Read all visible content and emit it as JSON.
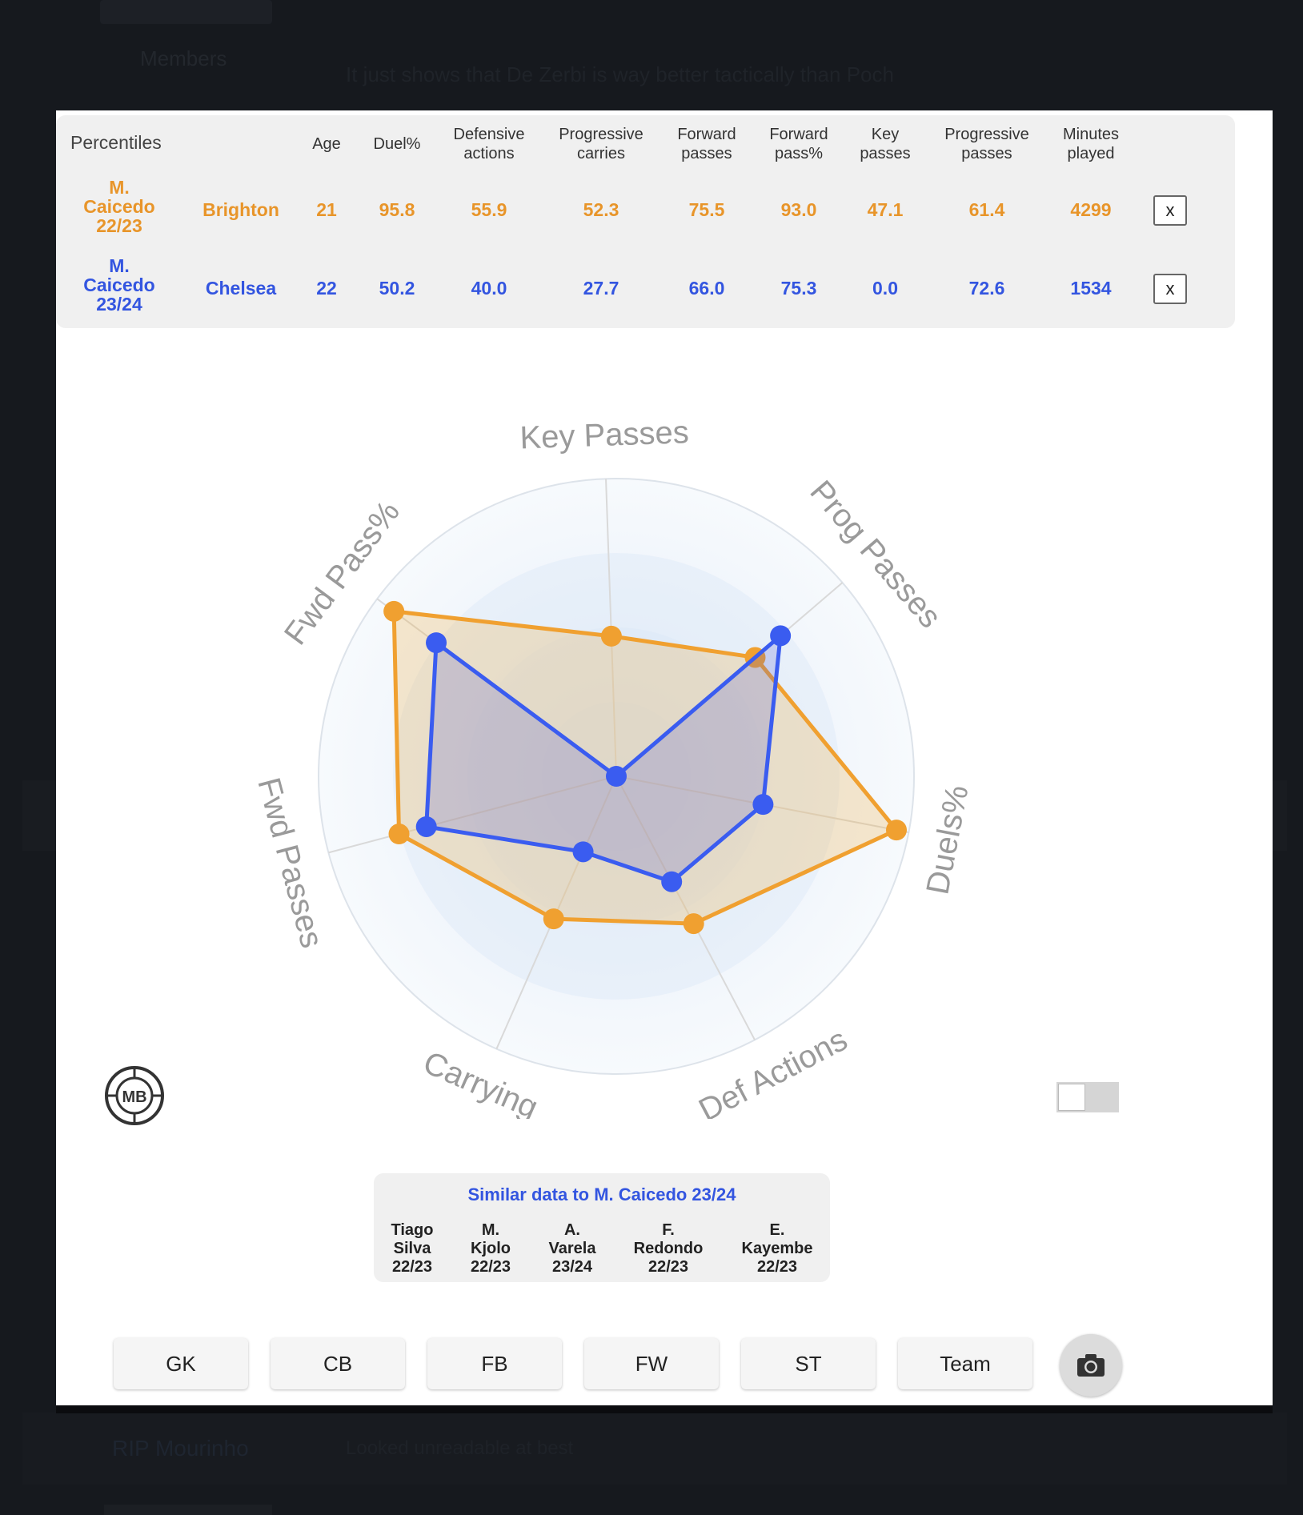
{
  "background": {
    "left_text": "Members",
    "top_text": "It just shows that De Zerbi is way better tactically than Poch",
    "bottom_left_text": "RIP Mourinho",
    "bottom_mid_text": "Looked unreadable at best"
  },
  "table": {
    "title": "Percentiles",
    "headers": [
      "Age",
      "Duel%",
      "Defensive\nactions",
      "Progressive\ncarries",
      "Forward\npasses",
      "Forward\npass%",
      "Key\npasses",
      "Progressive\npasses",
      "Minutes\nplayed"
    ],
    "rows": [
      {
        "player_line1": "M.",
        "player_line2": "Caicedo",
        "player_line3": "22/23",
        "team": "Brighton",
        "values": [
          "21",
          "95.8",
          "55.9",
          "52.3",
          "75.5",
          "93.0",
          "47.1",
          "61.4",
          "4299"
        ],
        "color": "#e8952a",
        "remove_label": "x"
      },
      {
        "player_line1": "M.",
        "player_line2": "Caicedo",
        "player_line3": "23/24",
        "team": "Chelsea",
        "values": [
          "22",
          "50.2",
          "40.0",
          "27.7",
          "66.0",
          "75.3",
          "0.0",
          "72.6",
          "1534"
        ],
        "color": "#3355e0",
        "remove_label": "x"
      }
    ]
  },
  "chart_data": {
    "type": "radar",
    "axes": [
      "Key Passes",
      "Prog Passes",
      "Duels%",
      "Def Actions",
      "Carrying",
      "Fwd Passes",
      "Fwd Pass%"
    ],
    "range": [
      0,
      100
    ],
    "series": [
      {
        "name": "M. Caicedo 22/23",
        "color": "#f0a030",
        "values": [
          47.1,
          61.4,
          95.8,
          55.9,
          52.3,
          75.5,
          93.0
        ]
      },
      {
        "name": "M. Caicedo 23/24",
        "color": "#3a5cf0",
        "values": [
          0.0,
          72.6,
          50.2,
          40.0,
          27.7,
          66.0,
          75.3
        ]
      }
    ]
  },
  "similar": {
    "title": "Similar data to M. Caicedo 23/24",
    "players": [
      {
        "l1": "Tiago",
        "l2": "Silva",
        "l3": "22/23"
      },
      {
        "l1": "M.",
        "l2": "Kjolo",
        "l3": "22/23"
      },
      {
        "l1": "A.",
        "l2": "Varela",
        "l3": "23/24"
      },
      {
        "l1": "F.",
        "l2": "Redondo",
        "l3": "22/23"
      },
      {
        "l1": "E.",
        "l2": "Kayembe",
        "l3": "22/23"
      }
    ]
  },
  "position_buttons": [
    "GK",
    "CB",
    "FB",
    "FW",
    "ST",
    "Team"
  ],
  "logo_text": "MB",
  "icons": {
    "camera": "camera-icon",
    "logo": "mb-logo"
  }
}
